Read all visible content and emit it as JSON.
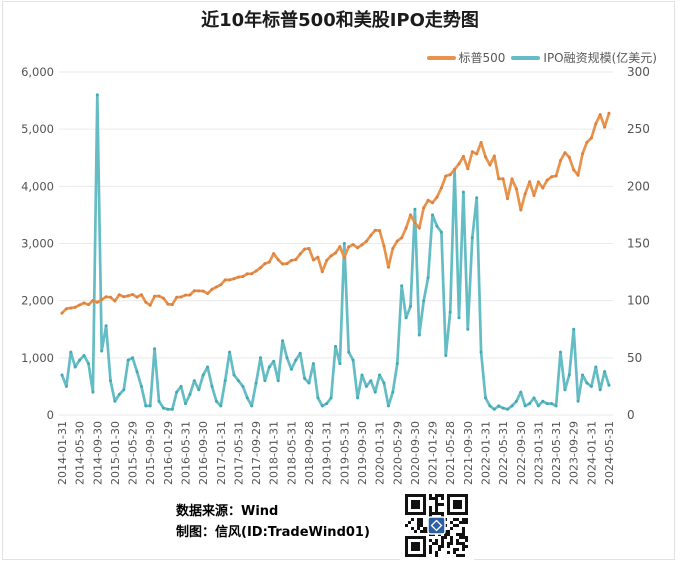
{
  "page": {
    "title": "近10年标普500和美股IPO走势图"
  },
  "legend": {
    "items": [
      {
        "label": "标普500",
        "color": "#E8934C"
      },
      {
        "label": "IPO融资规模(亿美元)",
        "color": "#64BCC4"
      }
    ]
  },
  "chart_data": {
    "type": "line",
    "title": "近10年标普500和美股IPO走势图",
    "x_start": "2014-01",
    "x_end": "2024-05",
    "x_tick_step_months": 4,
    "x_tick_labels": [
      "2014-01-31",
      "2014-05-30",
      "2014-09-30",
      "2015-01-30",
      "2015-05-29",
      "2015-09-30",
      "2016-01-29",
      "2016-05-31",
      "2016-09-30",
      "2017-01-31",
      "2017-05-31",
      "2017-09-29",
      "2018-01-31",
      "2018-05-31",
      "2018-09-28",
      "2019-01-31",
      "2019-05-31",
      "2019-09-30",
      "2020-01-31",
      "2020-05-29",
      "2020-09-30",
      "2021-01-29",
      "2021-05-28",
      "2021-09-30",
      "2022-01-31",
      "2022-05-31",
      "2022-09-30",
      "2023-01-31",
      "2023-05-31",
      "2023-09-29",
      "2024-01-31",
      "2024-05-31"
    ],
    "left_axis": {
      "series": "标普500",
      "min": 0,
      "max": 6000,
      "ticks": [
        "0",
        "1,000",
        "2,000",
        "3,000",
        "4,000",
        "5,000",
        "6,000"
      ]
    },
    "right_axis": {
      "series": "IPO融资规模(亿美元)",
      "min": 0,
      "max": 300,
      "ticks": [
        "0",
        "50",
        "100",
        "150",
        "200",
        "250",
        "300"
      ]
    },
    "grid": true,
    "legend_position": "top-right",
    "series": [
      {
        "name": "标普500",
        "axis": "left",
        "color": "#E8934C",
        "marker_color": "#DC8140",
        "values": [
          1783,
          1859,
          1872,
          1884,
          1924,
          1960,
          1931,
          2003,
          1972,
          2018,
          2068,
          2059,
          1995,
          2105,
          2068,
          2086,
          2107,
          2063,
          2104,
          1972,
          1920,
          2079,
          2080,
          2044,
          1940,
          1932,
          2060,
          2065,
          2097,
          2099,
          2174,
          2171,
          2168,
          2126,
          2199,
          2239,
          2279,
          2364,
          2363,
          2384,
          2412,
          2423,
          2470,
          2472,
          2519,
          2575,
          2648,
          2674,
          2824,
          2714,
          2641,
          2648,
          2705,
          2718,
          2816,
          2902,
          2914,
          2712,
          2760,
          2507,
          2704,
          2785,
          2834,
          2946,
          2752,
          2942,
          2980,
          2926,
          2977,
          3038,
          3141,
          3231,
          3226,
          2954,
          2585,
          2912,
          3044,
          3100,
          3271,
          3500,
          3363,
          3270,
          3622,
          3756,
          3714,
          3811,
          3973,
          4181,
          4204,
          4298,
          4395,
          4523,
          4308,
          4605,
          4567,
          4766,
          4516,
          4374,
          4530,
          4132,
          4132,
          3785,
          4130,
          3955,
          3586,
          3872,
          4080,
          3840,
          4077,
          3970,
          4109,
          4169,
          4180,
          4450,
          4589,
          4508,
          4288,
          4194,
          4568,
          4770,
          4846,
          5096,
          5254,
          5036,
          5277
        ]
      },
      {
        "name": "IPO融资规模(亿美元)",
        "axis": "right",
        "color": "#64BCC4",
        "marker_color": "#46A8B2",
        "values": [
          35,
          25,
          55,
          42,
          48,
          52,
          45,
          20,
          280,
          56,
          78,
          30,
          12,
          18,
          22,
          48,
          50,
          38,
          25,
          8,
          8,
          58,
          12,
          6,
          5,
          5,
          20,
          25,
          10,
          18,
          30,
          22,
          35,
          42,
          25,
          12,
          8,
          30,
          55,
          35,
          30,
          25,
          15,
          8,
          28,
          50,
          30,
          42,
          47,
          30,
          65,
          50,
          40,
          48,
          54,
          32,
          28,
          45,
          15,
          8,
          10,
          15,
          60,
          45,
          150,
          55,
          48,
          15,
          35,
          25,
          30,
          20,
          35,
          28,
          8,
          20,
          45,
          113,
          85,
          95,
          180,
          70,
          100,
          120,
          175,
          165,
          160,
          52,
          90,
          215,
          85,
          195,
          75,
          155,
          190,
          55,
          15,
          8,
          5,
          8,
          6,
          5,
          8,
          12,
          20,
          8,
          10,
          15,
          8,
          12,
          10,
          10,
          8,
          55,
          22,
          35,
          75,
          12,
          35,
          28,
          25,
          42,
          22,
          38,
          26
        ]
      }
    ]
  },
  "footer": {
    "source_line": "数据来源：Wind",
    "credit_line": "制图：信风(ID:TradeWind01)"
  },
  "colors": {
    "grid": "#EAEAEA",
    "axis_text": "#545454",
    "card_border": "#E2E2E2",
    "qr_center": "#2B5FA5"
  }
}
